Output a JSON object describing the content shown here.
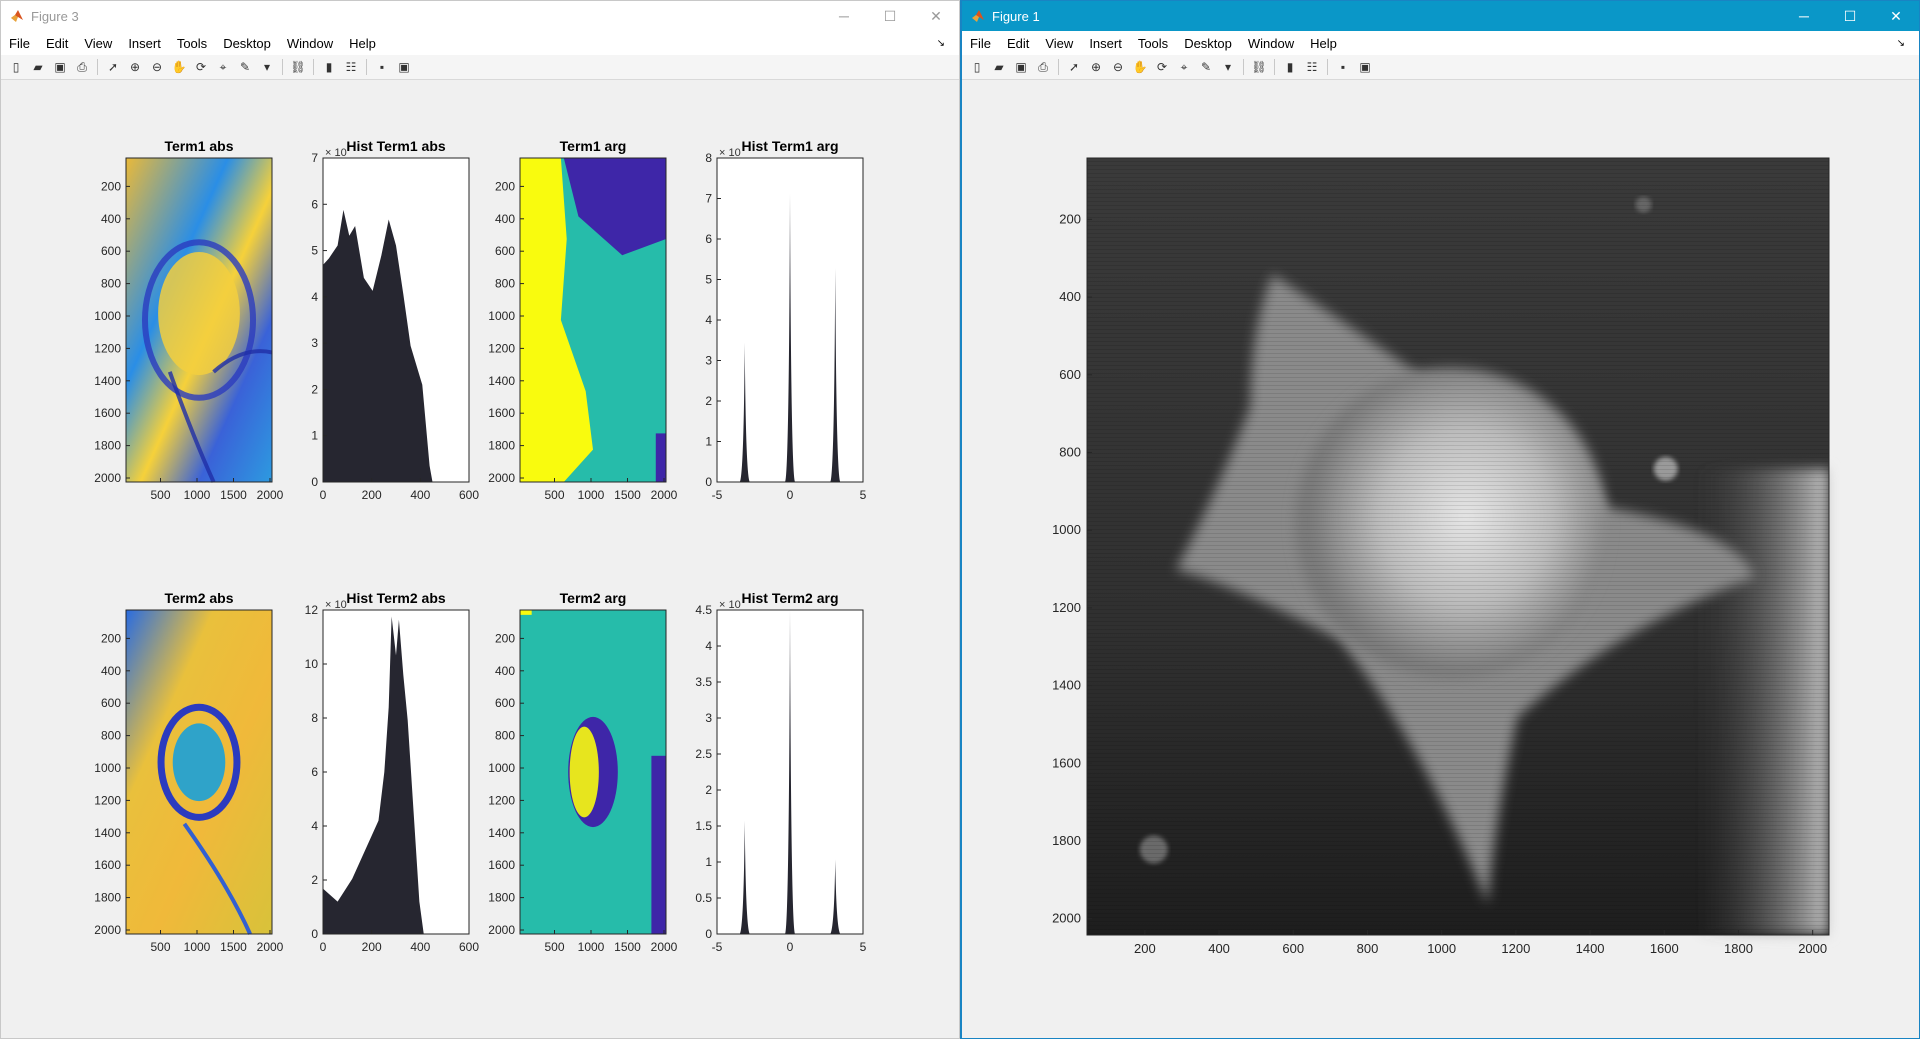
{
  "windows": {
    "fig3": {
      "title": "Figure 3",
      "menu": [
        "File",
        "Edit",
        "View",
        "Insert",
        "Tools",
        "Desktop",
        "Window",
        "Help"
      ],
      "toolbar_icons": [
        "new-figure-icon",
        "open-file-icon",
        "save-icon",
        "print-icon",
        "sep",
        "select-arrow-icon",
        "zoom-in-icon",
        "zoom-out-icon",
        "pan-icon",
        "rotate-3d-icon",
        "data-cursor-icon",
        "brush-icon",
        "dropdown-arrow-icon",
        "sep",
        "link-plot-icon",
        "sep",
        "colorbar-icon",
        "legend-icon",
        "sep",
        "hide-plot-tools-icon",
        "show-plot-tools-icon"
      ]
    },
    "fig1": {
      "title": "Figure 1",
      "menu": [
        "File",
        "Edit",
        "View",
        "Insert",
        "Tools",
        "Desktop",
        "Window",
        "Help"
      ]
    }
  },
  "window_controls": {
    "minimize": "─",
    "maximize": "☐",
    "close": "✕",
    "dock": "↘"
  },
  "colors": {
    "parula_low": "#3e26a8",
    "parula_mid": "#26bcaa",
    "parula_high": "#f9fb0e",
    "hist_bar": "#262630"
  },
  "subplots": [
    {
      "title": "Term1 abs",
      "type": "image",
      "xticks": [
        "500",
        "1000",
        "1500",
        "2000"
      ],
      "yticks": [
        "200",
        "400",
        "600",
        "800",
        "1000",
        "1200",
        "1400",
        "1600",
        "1800",
        "2000"
      ]
    },
    {
      "title": "Hist Term1 abs",
      "type": "histogram",
      "exp": "× 10",
      "xticks": [
        "0",
        "200",
        "400",
        "600"
      ],
      "yticks": [
        "0",
        "1",
        "2",
        "3",
        "4",
        "5",
        "6",
        "7"
      ]
    },
    {
      "title": "Term1 arg",
      "type": "image",
      "xticks": [
        "500",
        "1000",
        "1500",
        "2000"
      ],
      "yticks": [
        "200",
        "400",
        "600",
        "800",
        "1000",
        "1200",
        "1400",
        "1600",
        "1800",
        "2000"
      ]
    },
    {
      "title": "Hist Term1 arg",
      "type": "histogram",
      "exp": "× 10",
      "xticks": [
        "-5",
        "0",
        "5"
      ],
      "yticks": [
        "0",
        "1",
        "2",
        "3",
        "4",
        "5",
        "6",
        "7",
        "8"
      ]
    },
    {
      "title": "Term2 abs",
      "type": "image",
      "xticks": [
        "500",
        "1000",
        "1500",
        "2000"
      ],
      "yticks": [
        "200",
        "400",
        "600",
        "800",
        "1000",
        "1200",
        "1400",
        "1600",
        "1800",
        "2000"
      ]
    },
    {
      "title": "Hist Term2 abs",
      "type": "histogram",
      "exp": "× 10",
      "xticks": [
        "0",
        "200",
        "400",
        "600"
      ],
      "yticks": [
        "0",
        "2",
        "4",
        "6",
        "8",
        "10",
        "12"
      ]
    },
    {
      "title": "Term2 arg",
      "type": "image",
      "xticks": [
        "500",
        "1000",
        "1500",
        "2000"
      ],
      "yticks": [
        "200",
        "400",
        "600",
        "800",
        "1000",
        "1200",
        "1400",
        "1600",
        "1800",
        "2000"
      ]
    },
    {
      "title": "Hist Term2 arg",
      "type": "histogram",
      "exp": "× 10",
      "xticks": [
        "-5",
        "0",
        "5"
      ],
      "yticks": [
        "0",
        "0.5",
        "1",
        "1.5",
        "2",
        "2.5",
        "3",
        "3.5",
        "4",
        "4.5"
      ]
    }
  ],
  "fig1_axes": {
    "xticks": [
      "200",
      "400",
      "600",
      "800",
      "1000",
      "1200",
      "1400",
      "1600",
      "1800",
      "2000"
    ],
    "yticks": [
      "200",
      "400",
      "600",
      "800",
      "1000",
      "1200",
      "1400",
      "1600",
      "1800",
      "2000"
    ]
  }
}
